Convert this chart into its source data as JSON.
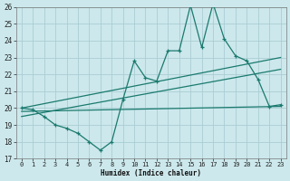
{
  "title": "",
  "xlabel": "Humidex (Indice chaleur)",
  "bg_color": "#cce8ec",
  "grid_color": "#aacdd4",
  "line_color": "#1a7a6e",
  "xmin": -0.5,
  "xmax": 23.5,
  "ymin": 17,
  "ymax": 26,
  "yticks": [
    17,
    18,
    19,
    20,
    21,
    22,
    23,
    24,
    25,
    26
  ],
  "xticks": [
    0,
    1,
    2,
    3,
    4,
    5,
    6,
    7,
    8,
    9,
    10,
    11,
    12,
    13,
    14,
    15,
    16,
    17,
    18,
    19,
    20,
    21,
    22,
    23
  ],
  "line1_x": [
    0,
    1,
    2,
    3,
    4,
    5,
    6,
    7,
    8,
    9,
    10,
    11,
    12,
    13,
    14,
    15,
    16,
    17,
    18,
    19,
    20,
    21,
    22,
    23
  ],
  "line1_y": [
    20.0,
    19.9,
    19.5,
    19.0,
    18.8,
    18.5,
    18.0,
    17.5,
    18.0,
    20.5,
    22.8,
    21.8,
    21.6,
    23.4,
    23.4,
    26.1,
    23.6,
    26.2,
    24.1,
    23.1,
    22.8,
    21.7,
    20.1,
    20.2
  ],
  "line2_x": [
    0,
    23
  ],
  "line2_y": [
    20.0,
    23.0
  ],
  "line3_x": [
    0,
    23
  ],
  "line3_y": [
    19.5,
    22.3
  ],
  "line4_x": [
    0,
    23
  ],
  "line4_y": [
    19.8,
    20.1
  ]
}
